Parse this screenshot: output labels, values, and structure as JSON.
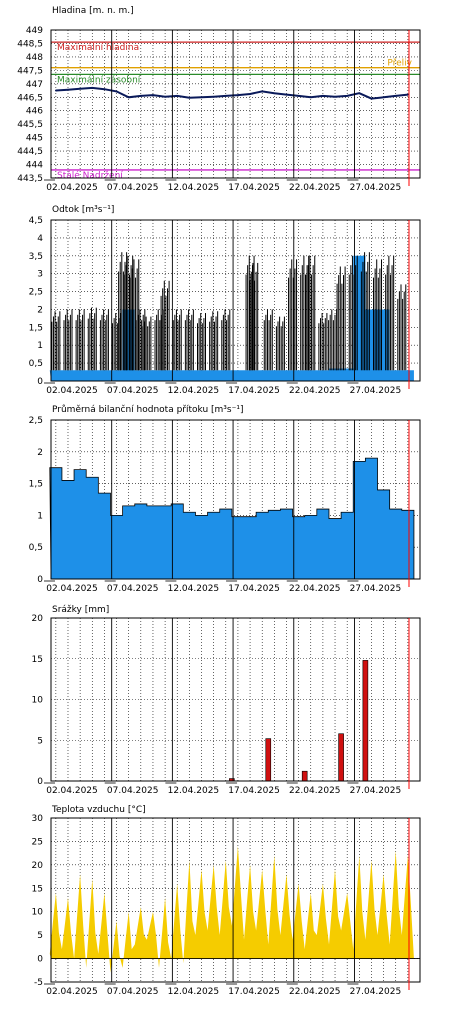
{
  "colors": {
    "level_line": "#0a1a5a",
    "flow_line": "#000000",
    "flow_fill": "#1e90e8",
    "inflow_fill": "#1e90e8",
    "rain_bar": "#d01010",
    "temp_fill": "#f5cc00",
    "max_flood": "#cc2222",
    "spill": "#e0a000",
    "max_storage": "#2a8a2a",
    "perm_storage": "#cc22cc",
    "now_marker": "#ff0000"
  },
  "chart_data": [
    {
      "type": "line",
      "title": "Hladina [m. n. m.]",
      "ylim": [
        443.5,
        449
      ],
      "yticks": [
        "449",
        "448,5",
        "448",
        "447,5",
        "447",
        "446,5",
        "446",
        "445,5",
        "445",
        "444,5",
        "444",
        "443,5"
      ],
      "xticks": [
        "02.04.2025",
        "07.04.2025",
        "12.04.2025",
        "17.04.2025",
        "22.04.2025",
        "27.04.2025"
      ],
      "reference_lines": [
        {
          "label": "Maximální hladina",
          "value": 448.55,
          "color": "#cc2222"
        },
        {
          "label": "Přeliv",
          "value": 447.6,
          "color": "#e0a000"
        },
        {
          "label": "Maximální zásobní",
          "value": 447.35,
          "color": "#2a8a2a"
        },
        {
          "label": "Stálé Nadržení",
          "value": 443.8,
          "color": "#cc22cc"
        }
      ],
      "x": [
        1,
        2,
        3,
        4,
        5,
        6,
        7,
        8,
        9,
        10,
        11,
        12,
        13,
        14,
        15,
        16,
        17,
        18,
        19,
        20,
        21,
        22,
        23,
        24,
        25,
        26,
        27,
        28,
        29,
        30
      ],
      "values": [
        446.75,
        446.78,
        446.82,
        446.85,
        446.8,
        446.72,
        446.5,
        446.55,
        446.58,
        446.52,
        446.55,
        446.48,
        446.5,
        446.52,
        446.55,
        446.58,
        446.62,
        446.72,
        446.65,
        446.6,
        446.55,
        446.5,
        446.55,
        446.52,
        446.55,
        446.65,
        446.45,
        446.5,
        446.55,
        446.6
      ]
    },
    {
      "type": "area",
      "title": "Odtok [m³s⁻¹]",
      "ylim": [
        0,
        4.5
      ],
      "yticks": [
        "4,5",
        "4",
        "3,5",
        "3",
        "2,5",
        "2",
        "1,5",
        "1",
        "0,5",
        "0"
      ],
      "xticks": [
        "02.04.2025",
        "07.04.2025",
        "12.04.2025",
        "17.04.2025",
        "22.04.2025",
        "27.04.2025"
      ],
      "series": [
        {
          "x": [
            1,
            2,
            3,
            4,
            5,
            6,
            7,
            8,
            9,
            10,
            11,
            12,
            13,
            14,
            15,
            16,
            17,
            18,
            19,
            20,
            21,
            22,
            23,
            24,
            25,
            26,
            27,
            28,
            29,
            30
          ],
          "values": [
            0.3,
            0.3,
            0.3,
            0.3,
            0.3,
            0.3,
            2,
            0.3,
            0.3,
            0.3,
            0.3,
            0.3,
            0.3,
            0.3,
            0.3,
            0.3,
            0.3,
            0.3,
            0.3,
            0.3,
            0.3,
            0.3,
            0.3,
            0.35,
            0.35,
            3.5,
            2,
            2,
            0.3,
            0.3
          ]
        }
      ],
      "pulses": [
        {
          "x": 1,
          "v": 1.95
        },
        {
          "x": 2,
          "v": 2.0
        },
        {
          "x": 3,
          "v": 2.0
        },
        {
          "x": 4,
          "v": 2.05
        },
        {
          "x": 5,
          "v": 2.0
        },
        {
          "x": 6,
          "v": 1.9
        },
        {
          "x": 6.5,
          "v": 3.6
        },
        {
          "x": 7,
          "v": 3.5
        },
        {
          "x": 7.5,
          "v": 3.4
        },
        {
          "x": 8,
          "v": 2.0
        },
        {
          "x": 8.5,
          "v": 1.8
        },
        {
          "x": 9.5,
          "v": 2.0
        },
        {
          "x": 10,
          "v": 2.8
        },
        {
          "x": 11,
          "v": 2.0
        },
        {
          "x": 12,
          "v": 2.0
        },
        {
          "x": 13,
          "v": 1.9
        },
        {
          "x": 14,
          "v": 1.95
        },
        {
          "x": 15,
          "v": 2.0
        },
        {
          "x": 17,
          "v": 3.5
        },
        {
          "x": 17.3,
          "v": 3.3
        },
        {
          "x": 18.5,
          "v": 2.0
        },
        {
          "x": 19.5,
          "v": 1.8
        },
        {
          "x": 20.5,
          "v": 3.4
        },
        {
          "x": 21.5,
          "v": 3.5
        },
        {
          "x": 22,
          "v": 3.5
        },
        {
          "x": 23,
          "v": 1.9
        },
        {
          "x": 23.8,
          "v": 2.0
        },
        {
          "x": 24.5,
          "v": 3.2
        },
        {
          "x": 25.5,
          "v": 3.5
        },
        {
          "x": 26.5,
          "v": 3.6
        },
        {
          "x": 27.5,
          "v": 3.4
        },
        {
          "x": 28.5,
          "v": 3.5
        },
        {
          "x": 29.5,
          "v": 2.7
        }
      ]
    },
    {
      "type": "area",
      "title": "Průměrná bilanční hodnota přítoku   [m³s⁻¹]",
      "ylim": [
        0,
        2.5
      ],
      "yticks": [
        "2,5",
        "2",
        "1,5",
        "1",
        "0,5",
        "0"
      ],
      "xticks": [
        "02.04.2025",
        "07.04.2025",
        "12.04.2025",
        "17.04.2025",
        "22.04.2025",
        "27.04.2025"
      ],
      "x": [
        1,
        2,
        3,
        4,
        5,
        6,
        7,
        8,
        9,
        10,
        11,
        12,
        13,
        14,
        15,
        16,
        17,
        18,
        19,
        20,
        21,
        22,
        23,
        24,
        25,
        26,
        27,
        28,
        29,
        30
      ],
      "values": [
        1.75,
        1.55,
        1.72,
        1.6,
        1.35,
        1.0,
        1.15,
        1.18,
        1.15,
        1.15,
        1.18,
        1.05,
        1.0,
        1.05,
        1.1,
        0.98,
        0.98,
        1.05,
        1.08,
        1.1,
        0.98,
        1.0,
        1.1,
        0.95,
        1.05,
        1.85,
        1.9,
        1.4,
        1.1,
        1.08
      ]
    },
    {
      "type": "bar",
      "title": "Srážky [mm]",
      "ylim": [
        0,
        20
      ],
      "yticks": [
        "20",
        "15",
        "10",
        "5",
        "0"
      ],
      "xticks": [
        "02.04.2025",
        "07.04.2025",
        "12.04.2025",
        "17.04.2025",
        "22.04.2025",
        "27.04.2025"
      ],
      "x": [
        15.5,
        18.5,
        21.5,
        24.5,
        26.5
      ],
      "values": [
        0.3,
        5.2,
        1.2,
        5.8,
        14.8
      ]
    },
    {
      "type": "area",
      "title": "Teplota vzduchu [°C]",
      "ylim": [
        -5,
        30
      ],
      "yticks": [
        "30",
        "25",
        "20",
        "15",
        "10",
        "5",
        "0",
        "-5"
      ],
      "xticks": [
        "02.04.2025",
        "07.04.2025",
        "12.04.2025",
        "17.04.2025",
        "22.04.2025",
        "27.04.2025"
      ],
      "day_min": [
        1,
        2,
        0,
        -2,
        1,
        -3,
        -2,
        3,
        4,
        -2,
        0,
        -1,
        5,
        6,
        5,
        7,
        4,
        6,
        3,
        5,
        4,
        2,
        5,
        3,
        6,
        2,
        4,
        5,
        3,
        5
      ],
      "day_max": [
        14,
        13,
        18,
        17,
        14,
        8,
        10,
        11,
        10,
        13,
        16,
        21,
        19,
        20,
        21,
        24,
        20,
        19,
        22,
        18,
        16,
        14,
        16,
        19,
        14,
        22,
        21,
        18,
        23,
        22
      ]
    }
  ]
}
